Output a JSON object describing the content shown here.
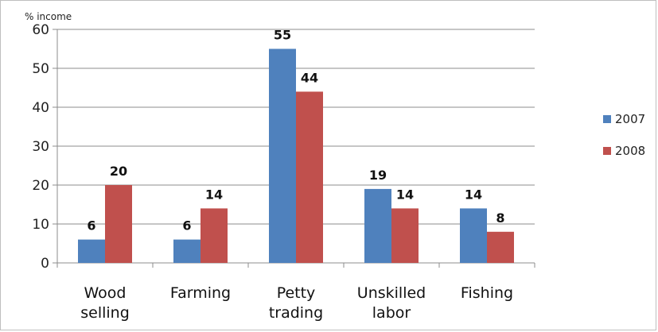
{
  "chart_data": {
    "type": "bar",
    "title": "",
    "xlabel": "",
    "ylabel": "% income",
    "ylim": [
      0,
      60
    ],
    "yticks": [
      0,
      10,
      20,
      30,
      40,
      50,
      60
    ],
    "grid": true,
    "legend_position": "right",
    "categories": [
      [
        "Wood",
        "selling"
      ],
      [
        "Farming"
      ],
      [
        "Petty",
        "trading"
      ],
      [
        "Unskilled",
        "labor"
      ],
      [
        "Fishing"
      ]
    ],
    "series": [
      {
        "name": "2007",
        "color": "#4f81bd",
        "values": [
          6,
          6,
          55,
          19,
          14
        ]
      },
      {
        "name": "2008",
        "color": "#c0504d",
        "values": [
          20,
          14,
          44,
          14,
          8
        ]
      }
    ]
  }
}
